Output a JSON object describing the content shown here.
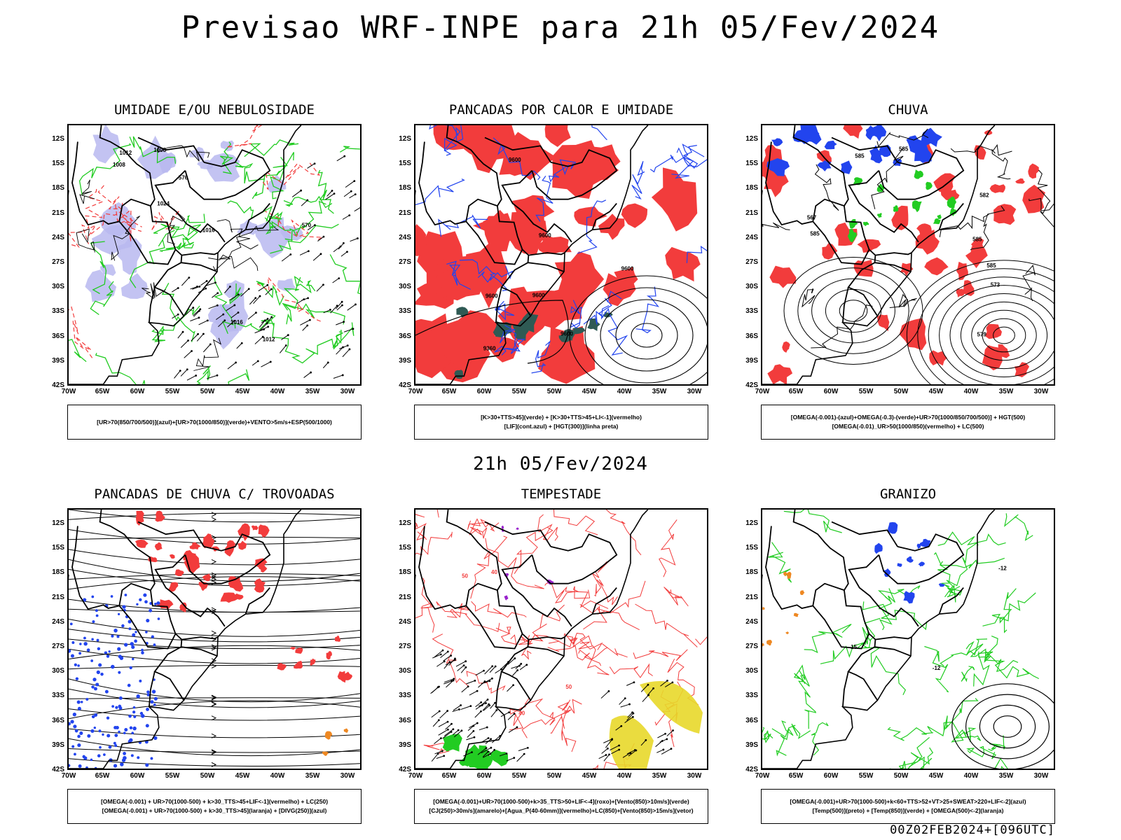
{
  "header": {
    "title": "Previsao WRF-INPE  para 21h 05/Fev/2024"
  },
  "middle": {
    "title": "21h 05/Fev/2024"
  },
  "footer": {
    "text": "00Z02FEB2024+[096UTC]"
  },
  "axes": {
    "lat_labels": [
      "12S",
      "15S",
      "18S",
      "21S",
      "24S",
      "27S",
      "30S",
      "33S",
      "36S",
      "39S",
      "42S"
    ],
    "lon_labels": [
      "70W",
      "65W",
      "60W",
      "55W",
      "50W",
      "45W",
      "40W",
      "35W",
      "30W"
    ]
  },
  "colors": {
    "red": "#f23c3c",
    "green": "#22cc22",
    "blue": "#2244ee",
    "lavender": "#b8b8f0",
    "darkteal": "#2f5a54",
    "yellow": "#e8d82a",
    "orange": "#ee8822",
    "purple": "#9922cc"
  },
  "panels": [
    {
      "title": "UMIDADE E/OU NEBULOSIDADE",
      "legend": [
        "[UR>70(850/700/500)](azul)+[UR>70(1000/850)](verde)+VENTO>5m/s+ESP(500/1000)"
      ],
      "contour_labels": [
        "1012",
        "1016",
        "1008",
        "1012",
        "570",
        "576",
        "1016",
        "1024",
        "1008"
      ]
    },
    {
      "title": "PANCADAS POR CALOR E UMIDADE",
      "legend": [
        "[K>30+TTS>45](verde) + [K>30+TTS>45+LI<-1](vermelho)",
        "[LIF](cont.azul) + [HGT(300)](linha preta)"
      ],
      "contour_labels": [
        "9600",
        "9600",
        "9600",
        "9600",
        "9360",
        "9600",
        "9600"
      ]
    },
    {
      "title": "CHUVA",
      "legend": [
        "[OMEGA(-0.001)-(azul)+OMEGA(-0.3)-(verde)+UR>70(1000/850/700/500)] + HGT(500)",
        "[OMEGA(-0.01)_UR>50(1000/850)(vermelho) + LC(500)"
      ],
      "contour_labels": [
        "585",
        "585",
        "585",
        "585",
        "585",
        "573",
        "579",
        "567",
        "582"
      ]
    },
    {
      "title": "PANCADAS DE CHUVA C/ TROVOADAS",
      "legend": [
        "[OMEGA(-0.001) + UR>70(1000-500) + k>30_TTS>45+LIF<-1](vermelho) + LC(250)",
        "[OMEGA(-0.001) + UR>70(1000-500) + k>30_TTS>45](laranja) + [DIVG(250)](azul)"
      ],
      "contour_labels": []
    },
    {
      "title": "TEMPESTADE",
      "legend": [
        "[OMEGA(-0.001)+UR>70(1000-500)+k>35_TTS>50+LIF<-4](roxo)+[Vento(850)>10m/s](verde)",
        "[CJ(250)>30m/s](amarelo)+[Agua_P(40-60mm)](vermelho)+LC(850)+[Vento(850)>15m/s](vetor)"
      ],
      "contour_labels": [
        "50",
        "40",
        "40",
        "50"
      ]
    },
    {
      "title": "GRANIZO",
      "legend": [
        "[OMEGA(-0.001)+UR>70(1000-500)+k<60+TTS>52+VT>25+SWEAT>220+LIF<-2](azul)",
        "[Temp(500)](preto) + [Temp(850)](verde) + [OMEGA(500)<-2](laranja)"
      ],
      "contour_labels": [
        "-12",
        "-15",
        "-12"
      ]
    }
  ]
}
